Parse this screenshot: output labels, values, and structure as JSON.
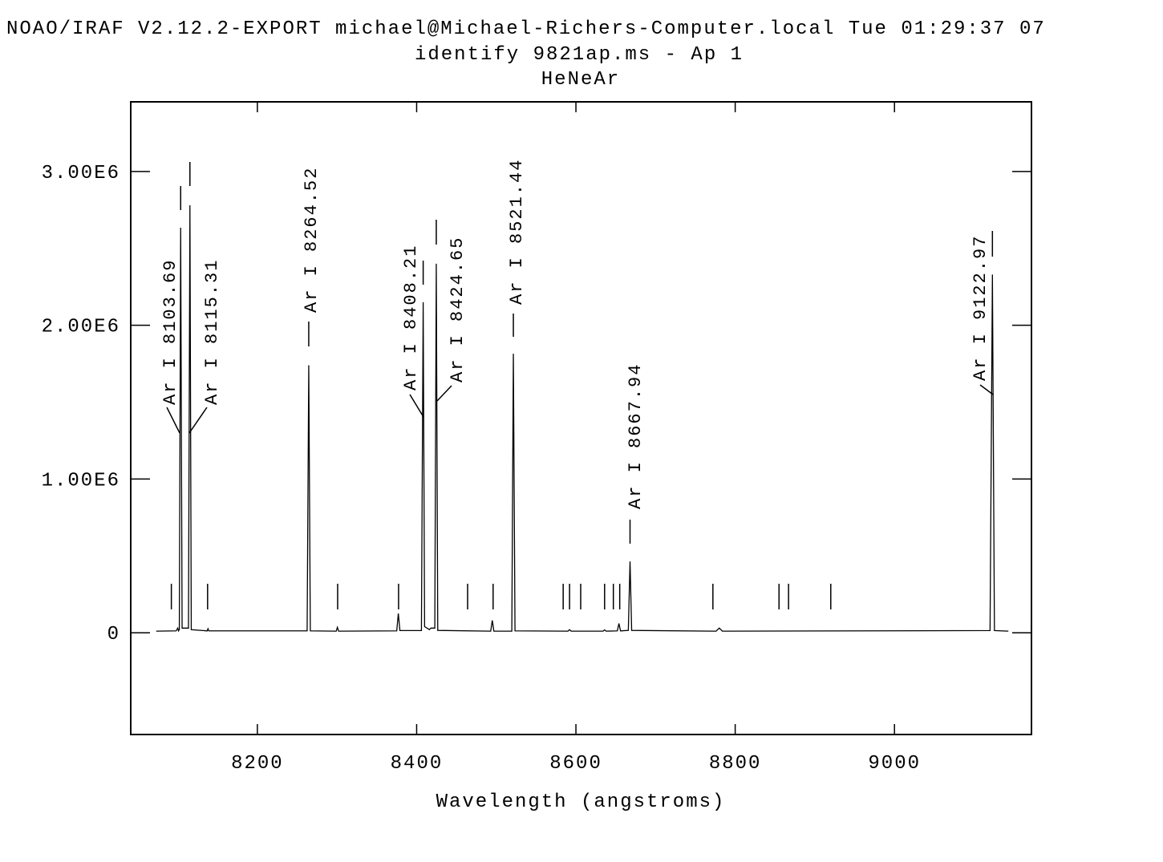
{
  "chart_data": {
    "type": "line",
    "title": "NOAO/IRAF V2.12.2-EXPORT michael@Michael-Richers-Computer.local Tue 01:29:37 07",
    "subtitle": "identify 9821ap.ms - Ap 1",
    "subtitle2": "HeNeAr",
    "x_label": "Wavelength (angstroms)",
    "color": "#000000",
    "xlim": [
      8041,
      9172
    ],
    "ylim": [
      -662000,
      3453000
    ],
    "xticks": [
      8200,
      8400,
      8600,
      8800,
      9000
    ],
    "yticks": [
      0,
      {
        "value": 1000000,
        "label": "1.00E6"
      },
      {
        "value": 2000000,
        "label": "2.00E6"
      },
      {
        "value": 3000000,
        "label": "3.00E6"
      }
    ],
    "x": [
      8073,
      8098,
      8100,
      8101,
      8102,
      8103.69,
      8105.5,
      8113.5,
      8115.31,
      8117,
      8137,
      8138,
      8139,
      8262.5,
      8264.52,
      8266.5,
      8299,
      8300.5,
      8302,
      8375,
      8377,
      8379,
      8406,
      8408.21,
      8410,
      8416,
      8418,
      8422.8,
      8424.65,
      8426.5,
      8493,
      8495,
      8497,
      8519.5,
      8521.44,
      8523.5,
      8590,
      8592,
      8594,
      8634,
      8636,
      8638,
      8652,
      8654,
      8656,
      8665.8,
      8667.94,
      8670,
      8776,
      8780,
      8784,
      9120,
      9122.97,
      9125.5,
      9143
    ],
    "values": [
      10000,
      12000,
      30000,
      12000,
      20000,
      2634000,
      30000,
      30000,
      2780000,
      20000,
      12000,
      26000,
      12000,
      12000,
      1740000,
      12000,
      10000,
      35000,
      10000,
      12000,
      125000,
      14000,
      14000,
      2150000,
      40000,
      20000,
      30000,
      30000,
      2400000,
      15000,
      10000,
      80000,
      10000,
      10000,
      1815000,
      12000,
      10000,
      20000,
      10000,
      10000,
      18000,
      10000,
      12000,
      60000,
      12000,
      15000,
      464000,
      15000,
      10000,
      30000,
      10000,
      14000,
      2330000,
      14000,
      10000
    ],
    "identified_lines": [
      {
        "label": "Ar I 8103.69",
        "x": 8103.69
      },
      {
        "label": "Ar I 8115.31",
        "x": 8115.31
      },
      {
        "label": "Ar I 8264.52",
        "x": 8264.52
      },
      {
        "label": "Ar I 8408.21",
        "x": 8408.21
      },
      {
        "label": "Ar I 8424.65",
        "x": 8424.65
      },
      {
        "label": "Ar I 8521.44",
        "x": 8521.44
      },
      {
        "label": "Ar I 8667.94",
        "x": 8667.94
      },
      {
        "label": "Ar I 9122.97",
        "x": 9122.97
      }
    ],
    "line_marks": [
      8092,
      8137.5,
      8300.8,
      8377.3,
      8464,
      8496,
      8584,
      8592,
      8606,
      8636,
      8647,
      8655,
      8772,
      8855,
      8867,
      8920
    ]
  }
}
